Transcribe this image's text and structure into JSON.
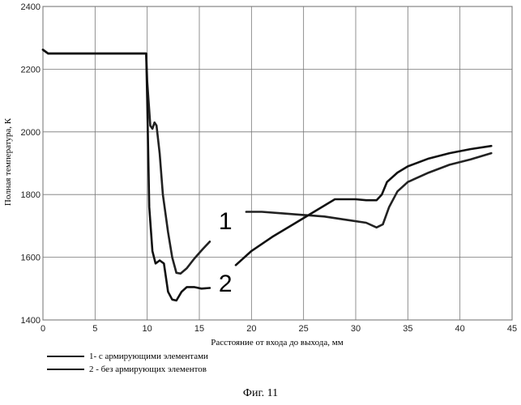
{
  "chart_data": {
    "type": "line",
    "ylabel": "Полная температура, К",
    "xlabel": "Расстояние от входа до выхода, мм",
    "xlim": [
      0,
      45
    ],
    "ylim": [
      1400,
      2400
    ],
    "xticks": [
      0,
      5,
      10,
      15,
      20,
      25,
      30,
      35,
      40,
      45
    ],
    "yticks": [
      1400,
      1600,
      1800,
      2000,
      2200,
      2400
    ],
    "grid": true,
    "legend_position": "bottom-left",
    "series": [
      {
        "name": "1- с армирующими элементами",
        "label": "1",
        "color": "#222222",
        "x": [
          0,
          0.5,
          3,
          8,
          9.9,
          10.0,
          10.3,
          10.5,
          10.7,
          10.9,
          11.2,
          11.5,
          12.0,
          12.4,
          12.8,
          13.2,
          13.8,
          14.5,
          15.3,
          16.0,
          null,
          19.5,
          21,
          23,
          25,
          27,
          29,
          31,
          32,
          32.6,
          33.2,
          34,
          35,
          37,
          39,
          41,
          43
        ],
        "y": [
          2262,
          2250,
          2250,
          2250,
          2250,
          2160,
          2020,
          2010,
          2030,
          2020,
          1930,
          1800,
          1680,
          1600,
          1550,
          1548,
          1565,
          1595,
          1625,
          1650,
          null,
          1745,
          1745,
          1740,
          1735,
          1730,
          1720,
          1710,
          1695,
          1705,
          1760,
          1810,
          1840,
          1870,
          1895,
          1912,
          1932
        ]
      },
      {
        "name": "2 - без армирующих элементов",
        "label": "2",
        "color": "#111111",
        "x": [
          0,
          0.5,
          3,
          8,
          9.9,
          10.0,
          10.2,
          10.5,
          10.8,
          11.2,
          11.6,
          12.0,
          12.4,
          12.8,
          13.3,
          13.8,
          14.5,
          15.2,
          16.0,
          null,
          18.5,
          20,
          22,
          24,
          26,
          28,
          30,
          31,
          32,
          32.5,
          33,
          34,
          35,
          37,
          39,
          41,
          43
        ],
        "y": [
          2262,
          2250,
          2250,
          2250,
          2250,
          2100,
          1760,
          1620,
          1580,
          1590,
          1580,
          1490,
          1465,
          1462,
          1490,
          1505,
          1505,
          1500,
          1502,
          null,
          1575,
          1620,
          1665,
          1705,
          1745,
          1785,
          1785,
          1782,
          1782,
          1800,
          1840,
          1870,
          1890,
          1915,
          1932,
          1945,
          1955
        ]
      }
    ],
    "annotations": [
      {
        "text": "1",
        "x": 17.5,
        "y": 1690
      },
      {
        "text": "2",
        "x": 17.5,
        "y": 1490
      }
    ]
  },
  "caption": "Фиг. 11"
}
